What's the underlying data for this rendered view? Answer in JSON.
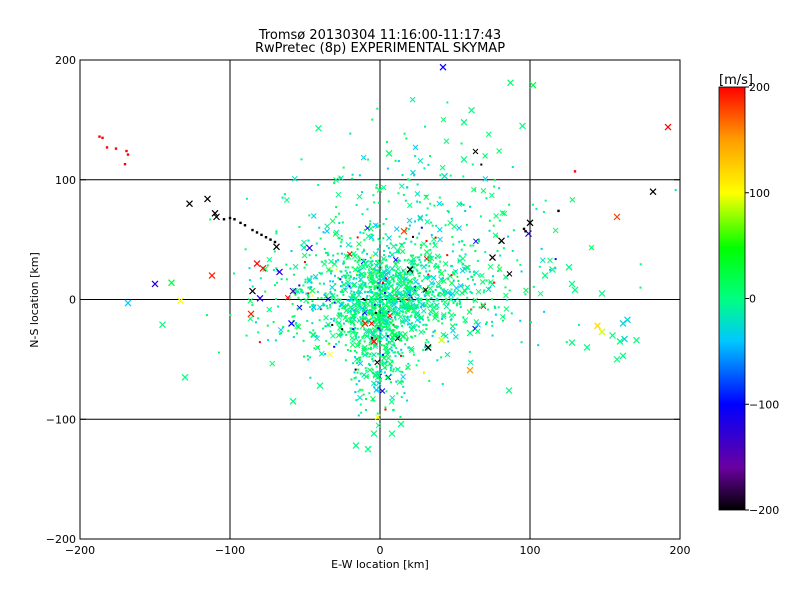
{
  "chart_data": {
    "type": "scatter",
    "title": "Tromsø 20130304 11:16:00-11:17:43",
    "subtitle": "RwPretec (8p) EXPERIMENTAL SKYMAP",
    "xlabel": "E-W location [km]",
    "ylabel": "N-S location [km]",
    "xlim": [
      -200,
      200
    ],
    "ylim": [
      -200,
      200
    ],
    "x_ticks": [
      -200,
      -100,
      0,
      100,
      200
    ],
    "y_ticks": [
      -200,
      -100,
      0,
      100,
      200
    ],
    "x_tick_labels": [
      "−200",
      "−100",
      "0",
      "100",
      "200"
    ],
    "y_tick_labels": [
      "−200",
      "−100",
      "0",
      "100",
      "200"
    ],
    "grid": true,
    "colorbar": {
      "unit_label": "[m/s]",
      "min": -200,
      "max": 200,
      "ticks": [
        200,
        100,
        0,
        -100,
        -200
      ],
      "tick_labels": [
        "200",
        "100",
        "0",
        "−100",
        "−200"
      ],
      "colors": [
        "#000000",
        "#6a00a0",
        "#0000ff",
        "#00c8ff",
        "#00ff80",
        "#00ff00",
        "#ffff00",
        "#ff9900",
        "#ff0000"
      ]
    },
    "markers": {
      "cross": [
        {
          "x": 42,
          "y": 194,
          "v": -100
        },
        {
          "x": 87,
          "y": 181,
          "v": 10
        },
        {
          "x": 102,
          "y": 179,
          "v": 20
        },
        {
          "x": 192,
          "y": 144,
          "v": 200
        },
        {
          "x": 56,
          "y": 148,
          "v": 0
        },
        {
          "x": 61,
          "y": 158,
          "v": 0
        },
        {
          "x": -41,
          "y": 143,
          "v": 0
        },
        {
          "x": 6,
          "y": 122,
          "v": 10
        },
        {
          "x": 95,
          "y": 145,
          "v": 0
        },
        {
          "x": 56,
          "y": 117,
          "v": 0
        },
        {
          "x": 43,
          "y": 103,
          "v": -20
        },
        {
          "x": 182,
          "y": 90,
          "v": -200
        },
        {
          "x": -115,
          "y": 84,
          "v": -200
        },
        {
          "x": -127,
          "y": 80,
          "v": -200
        },
        {
          "x": -110,
          "y": 72,
          "v": -200
        },
        {
          "x": -109,
          "y": 69,
          "v": -200
        },
        {
          "x": 158,
          "y": 69,
          "v": 180
        },
        {
          "x": 100,
          "y": 64,
          "v": -200
        },
        {
          "x": 99,
          "y": 55,
          "v": -120
        },
        {
          "x": 16,
          "y": 57,
          "v": 180
        },
        {
          "x": 81,
          "y": 49,
          "v": -200
        },
        {
          "x": -47,
          "y": 43,
          "v": -120
        },
        {
          "x": -69,
          "y": 44,
          "v": -200
        },
        {
          "x": 75,
          "y": 35,
          "v": -200
        },
        {
          "x": -82,
          "y": 30,
          "v": 200
        },
        {
          "x": -78,
          "y": 26,
          "v": 200
        },
        {
          "x": -67,
          "y": 23,
          "v": -120
        },
        {
          "x": -112,
          "y": 20,
          "v": 190
        },
        {
          "x": 20,
          "y": 25,
          "v": -200
        },
        {
          "x": -150,
          "y": 13,
          "v": -120
        },
        {
          "x": -139,
          "y": 14,
          "v": 30
        },
        {
          "x": -85,
          "y": 7,
          "v": -200
        },
        {
          "x": -58,
          "y": 7,
          "v": -150
        },
        {
          "x": -80,
          "y": 1,
          "v": -120
        },
        {
          "x": -133,
          "y": -1,
          "v": 100
        },
        {
          "x": -168,
          "y": -3,
          "v": -40
        },
        {
          "x": -86,
          "y": -12,
          "v": 190
        },
        {
          "x": -59,
          "y": -20,
          "v": -100
        },
        {
          "x": -145,
          "y": -21,
          "v": 0
        },
        {
          "x": -10,
          "y": -20,
          "v": 190
        },
        {
          "x": -4,
          "y": -35,
          "v": 200
        },
        {
          "x": 32,
          "y": -40,
          "v": -200
        },
        {
          "x": 60,
          "y": -28,
          "v": 0
        },
        {
          "x": 41,
          "y": -34,
          "v": 90
        },
        {
          "x": 60,
          "y": -59,
          "v": 150
        },
        {
          "x": 145,
          "y": -22,
          "v": 120
        },
        {
          "x": 148,
          "y": -27,
          "v": 90
        },
        {
          "x": 155,
          "y": -30,
          "v": 0
        },
        {
          "x": 160,
          "y": -35,
          "v": 0
        },
        {
          "x": 163,
          "y": -33,
          "v": -30
        },
        {
          "x": 162,
          "y": -20,
          "v": -30
        },
        {
          "x": 165,
          "y": -17,
          "v": -30
        },
        {
          "x": 171,
          "y": -34,
          "v": 0
        },
        {
          "x": 148,
          "y": 5,
          "v": 0
        },
        {
          "x": 158,
          "y": -50,
          "v": 0
        },
        {
          "x": 162,
          "y": -47,
          "v": 0
        },
        {
          "x": 138,
          "y": -40,
          "v": 0
        },
        {
          "x": 128,
          "y": -36,
          "v": 0
        },
        {
          "x": -130,
          "y": -65,
          "v": 0
        },
        {
          "x": -40,
          "y": -72,
          "v": 0
        },
        {
          "x": -58,
          "y": -85,
          "v": 0
        },
        {
          "x": 86,
          "y": -76,
          "v": 0
        },
        {
          "x": -16,
          "y": -122,
          "v": 0
        },
        {
          "x": -8,
          "y": -125,
          "v": 0
        },
        {
          "x": 8,
          "y": -112,
          "v": 0
        },
        {
          "x": -4,
          "y": -112,
          "v": 0
        },
        {
          "x": 14,
          "y": -104,
          "v": 0
        },
        {
          "x": 110,
          "y": 20,
          "v": 0
        },
        {
          "x": 128,
          "y": 13,
          "v": 0
        },
        {
          "x": 115,
          "y": 25,
          "v": 0
        },
        {
          "x": 126,
          "y": 27,
          "v": 0
        },
        {
          "x": 130,
          "y": 8,
          "v": 0
        }
      ],
      "dot": [
        {
          "x": -185,
          "y": 135,
          "v": 200
        },
        {
          "x": -187,
          "y": 136,
          "v": 200
        },
        {
          "x": -182,
          "y": 127,
          "v": 200
        },
        {
          "x": -176,
          "y": 126,
          "v": 200
        },
        {
          "x": -169,
          "y": 124,
          "v": 200
        },
        {
          "x": -168,
          "y": 121,
          "v": 200
        },
        {
          "x": -170,
          "y": 113,
          "v": 200
        },
        {
          "x": -104,
          "y": 67,
          "v": -200
        },
        {
          "x": -100,
          "y": 68,
          "v": -200
        },
        {
          "x": -97,
          "y": 67,
          "v": -200
        },
        {
          "x": -93,
          "y": 64,
          "v": -200
        },
        {
          "x": -90,
          "y": 62,
          "v": -200
        },
        {
          "x": -85,
          "y": 58,
          "v": -200
        },
        {
          "x": -82,
          "y": 56,
          "v": -200
        },
        {
          "x": -79,
          "y": 54,
          "v": -200
        },
        {
          "x": -76,
          "y": 52,
          "v": -200
        },
        {
          "x": -73,
          "y": 50,
          "v": -200
        },
        {
          "x": -70,
          "y": 48,
          "v": -200
        },
        {
          "x": 130,
          "y": 107,
          "v": 200
        },
        {
          "x": 119,
          "y": 74,
          "v": -200
        },
        {
          "x": 96,
          "y": 59,
          "v": -200
        },
        {
          "x": 97,
          "y": 57,
          "v": -200
        }
      ]
    },
    "cloud": {
      "note": "dense cluster of mostly green/cyan small markers centered near (0, 0)",
      "centers": [
        {
          "x": 0,
          "y": 0,
          "sx": 22,
          "sy": 22,
          "n": 900
        },
        {
          "x": 0,
          "y": -45,
          "sx": 12,
          "sy": 28,
          "n": 250
        },
        {
          "x": 25,
          "y": 55,
          "sx": 45,
          "sy": 45,
          "n": 300
        },
        {
          "x": 45,
          "y": 10,
          "sx": 25,
          "sy": 20,
          "n": 250
        },
        {
          "x": -35,
          "y": 5,
          "sx": 30,
          "sy": 25,
          "n": 200
        }
      ]
    }
  }
}
